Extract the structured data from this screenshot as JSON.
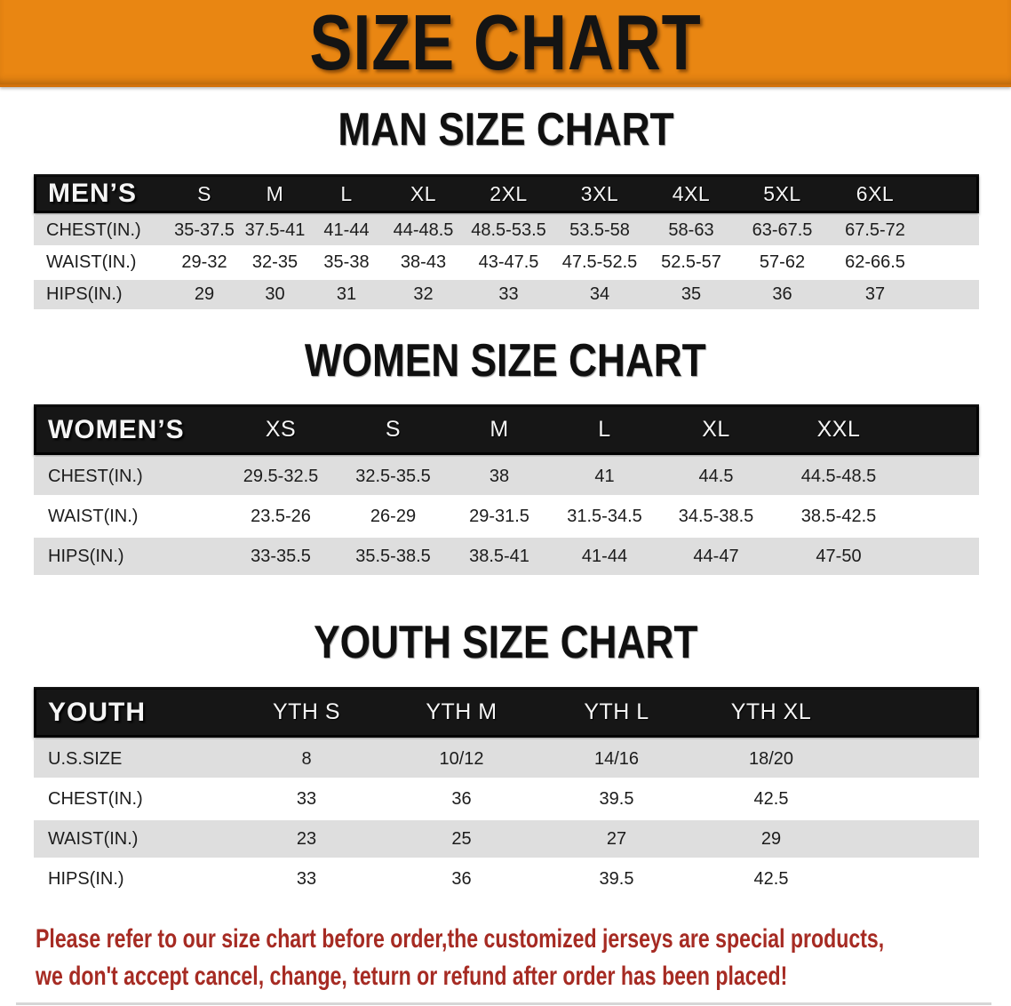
{
  "banner": {
    "title": "SIZE CHART"
  },
  "theme": {
    "banner_bg": "#E98612",
    "banner_text": "#141414",
    "header_bg": "#161616",
    "header_text": "#F5F5F5",
    "band_gray": "#DEDEDE",
    "cell_text": "#1C1C1C",
    "disclaimer_color": "#A62B23"
  },
  "sections": {
    "men": {
      "heading": "MAN SIZE CHART",
      "header": [
        "MEN’S",
        "S",
        "M",
        "L",
        "XL",
        "2XL",
        "3XL",
        "4XL",
        "5XL",
        "6XL"
      ],
      "rows": [
        {
          "label": "CHEST(IN.)",
          "values": [
            "35-37.5",
            "37.5-41",
            "41-44",
            "44-48.5",
            "48.5-53.5",
            "53.5-58",
            "58-63",
            "63-67.5",
            "67.5-72"
          ]
        },
        {
          "label": "WAIST(IN.)",
          "values": [
            "29-32",
            "32-35",
            "35-38",
            "38-43",
            "43-47.5",
            "47.5-52.5",
            "52.5-57",
            "57-62",
            "62-66.5"
          ]
        },
        {
          "label": "HIPS(IN.)",
          "values": [
            "29",
            "30",
            "31",
            "32",
            "33",
            "34",
            "35",
            "36",
            "37"
          ]
        }
      ]
    },
    "women": {
      "heading": "WOMEN SIZE CHART",
      "header": [
        "WOMEN’S",
        "XS",
        "S",
        "M",
        "L",
        "XL",
        "XXL"
      ],
      "rows": [
        {
          "label": "CHEST(IN.)",
          "values": [
            "29.5-32.5",
            "32.5-35.5",
            "38",
            "41",
            "44.5",
            "44.5-48.5"
          ]
        },
        {
          "label": "WAIST(IN.)",
          "values": [
            "23.5-26",
            "26-29",
            "29-31.5",
            "31.5-34.5",
            "34.5-38.5",
            "38.5-42.5"
          ]
        },
        {
          "label": "HIPS(IN.)",
          "values": [
            "33-35.5",
            "35.5-38.5",
            "38.5-41",
            "41-44",
            "44-47",
            "47-50"
          ]
        }
      ]
    },
    "youth": {
      "heading": "YOUTH SIZE CHART",
      "header": [
        "YOUTH",
        "YTH S",
        "YTH M",
        "YTH L",
        "YTH XL"
      ],
      "rows": [
        {
          "label": "U.S.SIZE",
          "values": [
            "8",
            "10/12",
            "14/16",
            "18/20"
          ]
        },
        {
          "label": "CHEST(IN.)",
          "values": [
            "33",
            "36",
            "39.5",
            "42.5"
          ]
        },
        {
          "label": "WAIST(IN.)",
          "values": [
            "23",
            "25",
            "27",
            "29"
          ]
        },
        {
          "label": "HIPS(IN.)",
          "values": [
            "33",
            "36",
            "39.5",
            "42.5"
          ]
        }
      ]
    }
  },
  "disclaimer": {
    "line1": "Please refer to our size chart before order,the customized jerseys are special products,",
    "line2": "we don't accept cancel, change, teturn or refund after order has been placed!"
  }
}
